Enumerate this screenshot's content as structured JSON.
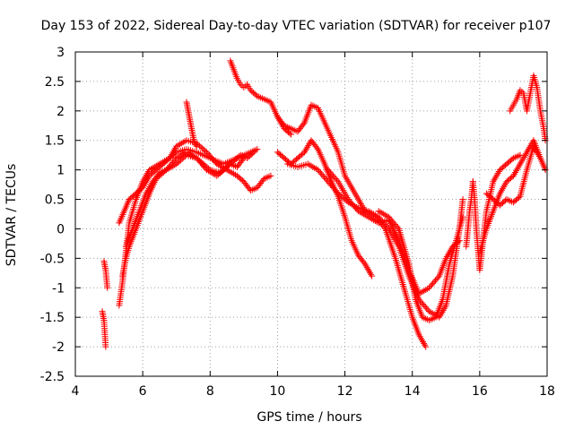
{
  "chart_data": {
    "type": "scatter",
    "title": "Day 153 of 2022, Sidereal Day-to-day VTEC variation (SDTVAR) for receiver p107",
    "xlabel": "GPS time / hours",
    "ylabel": "SDTVAR / TECUs",
    "xlim": [
      4,
      18
    ],
    "ylim": [
      -2.5,
      3
    ],
    "xticks": [
      "4",
      "6",
      "8",
      "10",
      "12",
      "14",
      "16",
      "18"
    ],
    "yticks": [
      "-2.5",
      "-2",
      "-1.5",
      "-1",
      "-0.5",
      "0",
      "0.5",
      "1",
      "1.5",
      "2",
      "2.5",
      "3"
    ],
    "grid": true,
    "marker": "+",
    "marker_color": "#ff0000",
    "series": [
      {
        "name": "s1",
        "x": [
          4.85,
          4.9,
          4.95
        ],
        "y": [
          -0.55,
          -0.7,
          -1.0
        ]
      },
      {
        "name": "s2",
        "x": [
          4.8,
          4.85,
          4.9
        ],
        "y": [
          -1.4,
          -1.55,
          -2.0
        ]
      },
      {
        "name": "s3",
        "x": [
          5.3,
          5.4,
          5.5,
          5.6,
          5.8,
          6.0,
          6.2,
          6.5,
          6.8,
          7.0,
          7.3,
          7.6,
          8.0,
          8.4,
          8.8,
          9.2,
          9.4
        ],
        "y": [
          -1.3,
          -0.9,
          -0.4,
          0.1,
          0.5,
          0.8,
          1.0,
          1.1,
          1.2,
          1.3,
          1.35,
          1.3,
          1.2,
          1.1,
          1.2,
          1.3,
          1.35
        ]
      },
      {
        "name": "s4",
        "x": [
          5.3,
          5.45,
          5.6,
          5.8,
          6.0,
          6.2,
          6.4,
          6.6,
          6.8,
          7.0,
          7.3,
          7.6,
          7.9,
          8.2,
          8.5,
          8.8,
          9.0,
          9.2,
          9.4,
          9.6,
          9.8
        ],
        "y": [
          0.1,
          0.3,
          0.5,
          0.6,
          0.7,
          0.9,
          1.0,
          1.1,
          1.2,
          1.4,
          1.5,
          1.45,
          1.3,
          1.1,
          1.0,
          0.9,
          0.8,
          0.65,
          0.7,
          0.85,
          0.9
        ]
      },
      {
        "name": "s5",
        "x": [
          5.4,
          5.5,
          5.6,
          5.8,
          6.0,
          6.2,
          6.4,
          6.7,
          7.0,
          7.3,
          7.6,
          7.9,
          8.2,
          8.4,
          8.6,
          8.8,
          9.0
        ],
        "y": [
          -0.8,
          -0.5,
          -0.3,
          0.0,
          0.3,
          0.6,
          0.85,
          1.0,
          1.2,
          1.3,
          1.2,
          1.0,
          0.9,
          1.0,
          1.1,
          1.05,
          1.2
        ]
      },
      {
        "name": "s6",
        "x": [
          5.5,
          5.7,
          5.9,
          6.1,
          6.3,
          6.5,
          6.7,
          7.0,
          7.3,
          7.6,
          8.0,
          8.3,
          8.6,
          8.9,
          9.1,
          9.3
        ],
        "y": [
          -0.3,
          0.0,
          0.3,
          0.6,
          0.8,
          0.95,
          1.0,
          1.1,
          1.25,
          1.2,
          1.0,
          0.95,
          1.1,
          1.25,
          1.2,
          1.3
        ]
      },
      {
        "name": "s7",
        "x": [
          7.3,
          7.35,
          7.4,
          7.45,
          7.5,
          7.55,
          7.6
        ],
        "y": [
          2.15,
          2.0,
          1.85,
          1.7,
          1.55,
          1.45,
          1.4
        ]
      },
      {
        "name": "s8",
        "x": [
          8.6,
          8.7,
          8.8,
          8.9,
          9.0,
          9.1,
          9.2,
          9.4,
          9.6,
          9.8,
          10.0,
          10.2,
          10.4
        ],
        "y": [
          2.85,
          2.7,
          2.55,
          2.45,
          2.4,
          2.45,
          2.35,
          2.25,
          2.2,
          2.15,
          1.9,
          1.7,
          1.6
        ]
      },
      {
        "name": "s9",
        "x": [
          10.0,
          10.2,
          10.4,
          10.6,
          10.8,
          11.0,
          11.2,
          11.4,
          11.6,
          11.8,
          12.0,
          12.3,
          12.6,
          12.9,
          13.2,
          13.5,
          13.8,
          14.0,
          14.2,
          14.4
        ],
        "y": [
          1.9,
          1.75,
          1.7,
          1.65,
          1.8,
          2.1,
          2.05,
          1.8,
          1.55,
          1.3,
          0.9,
          0.6,
          0.3,
          0.2,
          0.0,
          -0.5,
          -1.1,
          -1.5,
          -1.8,
          -2.0
        ]
      },
      {
        "name": "s10",
        "x": [
          10.0,
          10.2,
          10.4,
          10.6,
          10.8,
          11.0,
          11.2,
          11.4,
          11.6,
          11.8,
          12.0,
          12.2,
          12.4,
          12.6,
          12.8
        ],
        "y": [
          1.3,
          1.2,
          1.1,
          1.2,
          1.3,
          1.5,
          1.35,
          1.1,
          0.8,
          0.55,
          0.2,
          -0.2,
          -0.45,
          -0.6,
          -0.8
        ]
      },
      {
        "name": "s11",
        "x": [
          10.3,
          10.6,
          10.9,
          11.2,
          11.5,
          11.8,
          12.1,
          12.4,
          12.7,
          13.0,
          13.3,
          13.6,
          13.9,
          14.2,
          14.5,
          14.8,
          15.0,
          15.2,
          15.4,
          15.5
        ],
        "y": [
          1.1,
          1.05,
          1.1,
          1.0,
          0.8,
          0.6,
          0.45,
          0.35,
          0.3,
          0.2,
          0.0,
          -0.3,
          -0.8,
          -1.2,
          -1.4,
          -1.5,
          -1.3,
          -0.8,
          0.0,
          0.5
        ]
      },
      {
        "name": "s12",
        "x": [
          11.5,
          11.8,
          12.1,
          12.4,
          12.7,
          13.0,
          13.3,
          13.6,
          13.9,
          14.2,
          14.5,
          14.8,
          15.0,
          15.2,
          15.4
        ],
        "y": [
          1.0,
          0.8,
          0.5,
          0.3,
          0.2,
          0.1,
          0.15,
          -0.2,
          -0.7,
          -1.1,
          -1.0,
          -0.8,
          -0.5,
          -0.3,
          -0.2
        ]
      },
      {
        "name": "s13",
        "x": [
          13.0,
          13.3,
          13.6,
          13.9,
          14.1,
          14.3,
          14.5,
          14.7,
          14.9,
          15.1,
          15.3,
          15.5
        ],
        "y": [
          0.3,
          0.2,
          0.0,
          -0.6,
          -1.2,
          -1.5,
          -1.55,
          -1.5,
          -1.2,
          -0.6,
          -0.2,
          0.2
        ]
      },
      {
        "name": "s14",
        "x": [
          15.8,
          15.85,
          15.9,
          16.0,
          16.1,
          16.2,
          16.4,
          16.6,
          16.8,
          17.0,
          17.2
        ],
        "y": [
          0.8,
          0.5,
          0.0,
          -0.7,
          -0.2,
          0.3,
          0.8,
          1.0,
          1.1,
          1.2,
          1.25
        ]
      },
      {
        "name": "s15",
        "x": [
          16.2,
          16.4,
          16.6,
          16.8,
          17.0,
          17.2,
          17.4,
          17.6,
          17.8
        ],
        "y": [
          0.6,
          0.5,
          0.4,
          0.5,
          0.45,
          0.55,
          1.0,
          1.4,
          1.2
        ]
      },
      {
        "name": "s16",
        "x": [
          16.0,
          16.2,
          16.4,
          16.6,
          16.8,
          17.0,
          17.2,
          17.4,
          17.6,
          17.8,
          17.95
        ],
        "y": [
          -0.4,
          0.0,
          0.3,
          0.6,
          0.8,
          0.9,
          1.1,
          1.3,
          1.5,
          1.2,
          1.0
        ]
      },
      {
        "name": "s17",
        "x": [
          16.9,
          17.0,
          17.1,
          17.2,
          17.3,
          17.4,
          17.5,
          17.6,
          17.7,
          17.8,
          17.9,
          17.95
        ],
        "y": [
          2.0,
          2.1,
          2.2,
          2.35,
          2.3,
          2.0,
          2.3,
          2.6,
          2.4,
          2.0,
          1.7,
          1.5
        ]
      },
      {
        "name": "s18",
        "x": [
          15.6,
          15.65,
          15.7,
          15.75,
          15.8
        ],
        "y": [
          -0.3,
          0.0,
          0.3,
          0.5,
          0.8
        ]
      }
    ]
  }
}
